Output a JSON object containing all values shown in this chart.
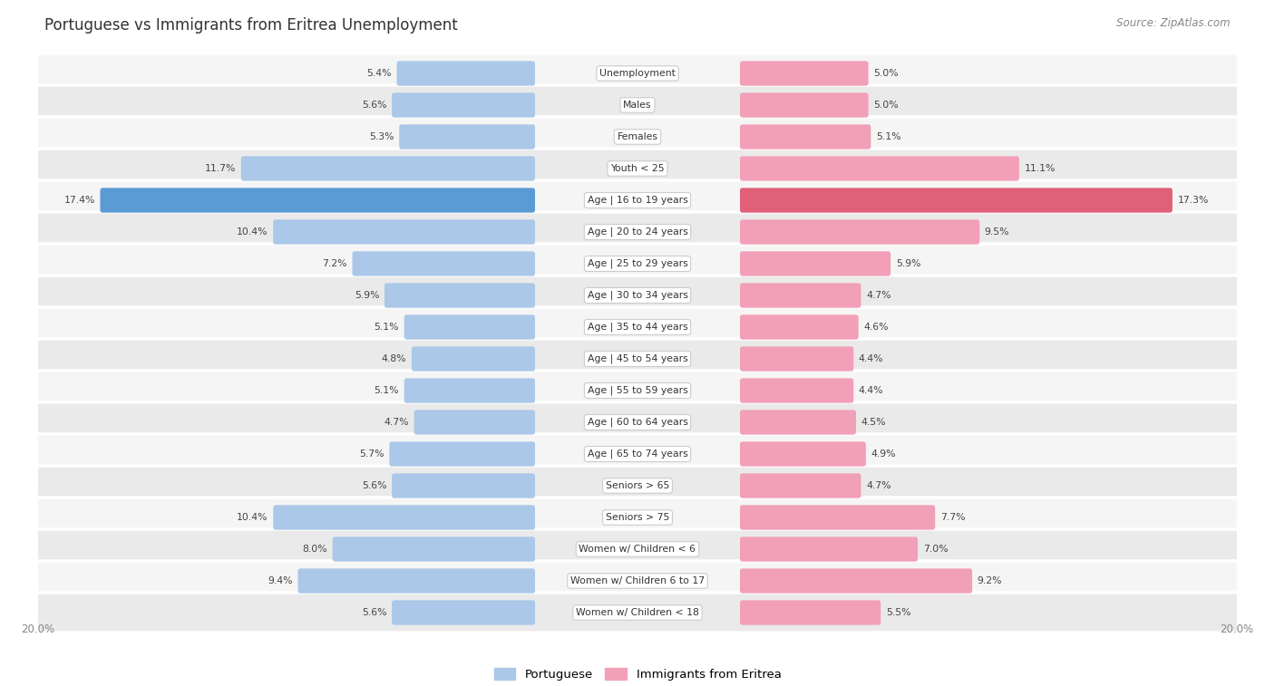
{
  "title": "Portuguese vs Immigrants from Eritrea Unemployment",
  "source": "Source: ZipAtlas.com",
  "categories": [
    "Unemployment",
    "Males",
    "Females",
    "Youth < 25",
    "Age | 16 to 19 years",
    "Age | 20 to 24 years",
    "Age | 25 to 29 years",
    "Age | 30 to 34 years",
    "Age | 35 to 44 years",
    "Age | 45 to 54 years",
    "Age | 55 to 59 years",
    "Age | 60 to 64 years",
    "Age | 65 to 74 years",
    "Seniors > 65",
    "Seniors > 75",
    "Women w/ Children < 6",
    "Women w/ Children 6 to 17",
    "Women w/ Children < 18"
  ],
  "portuguese": [
    5.4,
    5.6,
    5.3,
    11.7,
    17.4,
    10.4,
    7.2,
    5.9,
    5.1,
    4.8,
    5.1,
    4.7,
    5.7,
    5.6,
    10.4,
    8.0,
    9.4,
    5.6
  ],
  "eritrea": [
    5.0,
    5.0,
    5.1,
    11.1,
    17.3,
    9.5,
    5.9,
    4.7,
    4.6,
    4.4,
    4.4,
    4.5,
    4.9,
    4.7,
    7.7,
    7.0,
    9.2,
    5.5
  ],
  "max_val": 20.0,
  "blue_color": "#abc8e8",
  "pink_color": "#f2a0b8",
  "blue_highlight": "#5b9bd5",
  "pink_highlight": "#e0607a",
  "row_bg_light": "#f5f5f5",
  "row_bg_dark": "#eaeaea",
  "label_fontsize": 7.8,
  "value_fontsize": 7.8,
  "title_fontsize": 12,
  "source_fontsize": 8.5,
  "legend_fontsize": 9.5
}
